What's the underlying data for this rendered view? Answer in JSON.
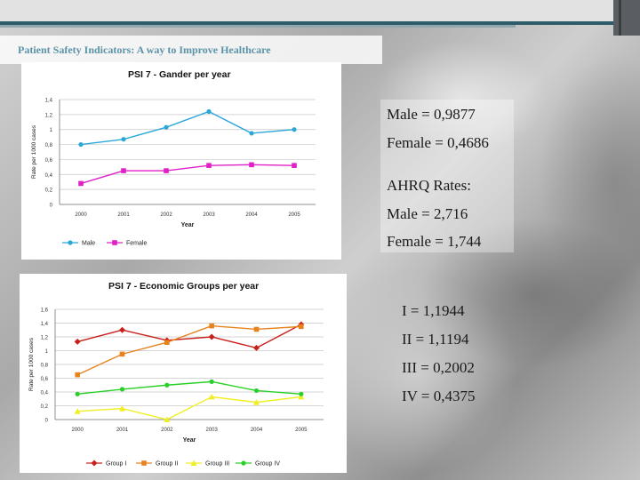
{
  "slide": {
    "title": "Patient Safety Indicators: A way to Improve Healthcare"
  },
  "stats_top": [
    "Male = 0,9877",
    "Female = 0,4686",
    "AHRQ Rates:",
    "Male = 2,716",
    "Female = 1,744"
  ],
  "stats_bottom": [
    "I = 1,1944",
    "II = 1,1194",
    "III = 0,2002",
    "IV = 0,4375"
  ],
  "chart_data": [
    {
      "type": "line",
      "title": "PSI 7 - Gander per year",
      "xlabel": "Year",
      "ylabel": "Rate per 1000 cases",
      "x": [
        "2000",
        "2001",
        "2002",
        "2003",
        "2004",
        "2005"
      ],
      "yticks": [
        "0",
        "0,2",
        "0,4",
        "0,6",
        "0,8",
        "1",
        "1,2",
        "1,4"
      ],
      "ylim": [
        0,
        1.4
      ],
      "grid": true,
      "legend_position": "bottom",
      "series": [
        {
          "name": "Male",
          "color": "#29a8d8",
          "marker": "circle",
          "values": [
            0.8,
            0.87,
            1.03,
            1.24,
            0.95,
            1.0
          ]
        },
        {
          "name": "Female",
          "color": "#e020c8",
          "marker": "square",
          "values": [
            0.28,
            0.45,
            0.45,
            0.52,
            0.53,
            0.52
          ]
        }
      ]
    },
    {
      "type": "line",
      "title": "PSI 7 - Economic Groups per year",
      "xlabel": "Year",
      "ylabel": "Rate per 1000 cases",
      "x": [
        "2000",
        "2001",
        "2002",
        "2003",
        "2004",
        "2005"
      ],
      "yticks": [
        "0",
        "0,2",
        "0,4",
        "0,6",
        "0,8",
        "1",
        "1,2",
        "1,4",
        "1,6"
      ],
      "ylim": [
        0,
        1.6
      ],
      "grid": true,
      "legend_position": "bottom",
      "series": [
        {
          "name": "Group I",
          "color": "#c8201c",
          "marker": "diamond",
          "values": [
            1.13,
            1.3,
            1.15,
            1.2,
            1.04,
            1.38
          ]
        },
        {
          "name": "Group II",
          "color": "#e8821e",
          "marker": "square",
          "values": [
            0.65,
            0.95,
            1.12,
            1.36,
            1.31,
            1.35
          ]
        },
        {
          "name": "Group III",
          "color": "#f0ee20",
          "marker": "triangle",
          "values": [
            0.12,
            0.16,
            0.0,
            0.33,
            0.25,
            0.33
          ]
        },
        {
          "name": "Group IV",
          "color": "#28d028",
          "marker": "circle",
          "values": [
            0.37,
            0.44,
            0.5,
            0.55,
            0.42,
            0.37
          ]
        }
      ]
    }
  ]
}
